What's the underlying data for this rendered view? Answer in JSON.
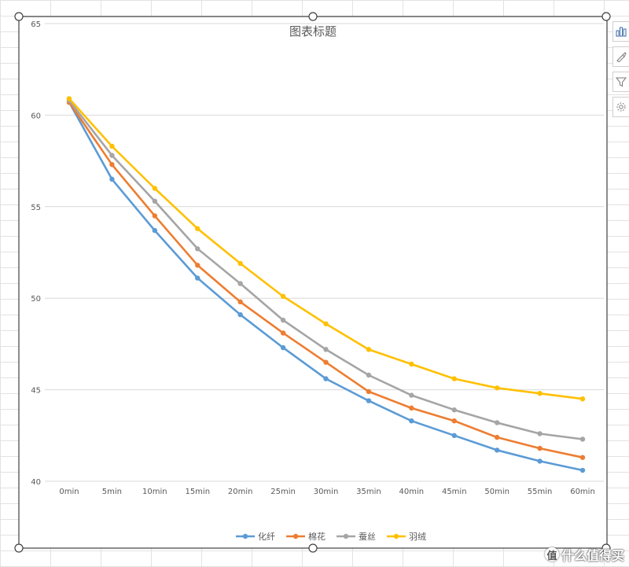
{
  "chart_data": {
    "type": "line",
    "title": "图表标题",
    "xlabel": "",
    "ylabel": "",
    "categories": [
      "0min",
      "5min",
      "10min",
      "15min",
      "20min",
      "25min",
      "30min",
      "35min",
      "40min",
      "45min",
      "50min",
      "55min",
      "60min"
    ],
    "ylim": [
      40,
      65
    ],
    "yticks": [
      40,
      45,
      50,
      55,
      60,
      65
    ],
    "grid": true,
    "legend_position": "bottom",
    "series": [
      {
        "name": "化纤",
        "color": "#5B9BD5",
        "values": [
          60.7,
          56.5,
          53.7,
          51.1,
          49.1,
          47.3,
          45.6,
          44.4,
          43.3,
          42.5,
          41.7,
          41.1,
          40.6
        ]
      },
      {
        "name": "棉花",
        "color": "#ED7D31",
        "values": [
          60.7,
          57.3,
          54.5,
          51.8,
          49.8,
          48.1,
          46.5,
          44.9,
          44.0,
          43.3,
          42.4,
          41.8,
          41.3
        ]
      },
      {
        "name": "蚕丝",
        "color": "#A5A5A5",
        "values": [
          60.8,
          57.8,
          55.3,
          52.7,
          50.8,
          48.8,
          47.2,
          45.8,
          44.7,
          43.9,
          43.2,
          42.6,
          42.3
        ]
      },
      {
        "name": "羽绒",
        "color": "#FFC000",
        "values": [
          60.9,
          58.3,
          56.0,
          53.8,
          51.9,
          50.1,
          48.6,
          47.2,
          46.4,
          45.6,
          45.1,
          44.8,
          44.5
        ]
      }
    ]
  },
  "side_toolbar": {
    "items": [
      {
        "name": "chart-elements-icon"
      },
      {
        "name": "chart-styles-brush-icon"
      },
      {
        "name": "chart-filters-funnel-icon"
      },
      {
        "name": "settings-gear-icon"
      }
    ]
  },
  "watermark": {
    "text": "什么值得买",
    "icon_glyph": "值"
  },
  "colors": {
    "grid": "#d9d9d9",
    "axis_text": "#595959",
    "title_text": "#595959",
    "selection_border": "#404040"
  }
}
